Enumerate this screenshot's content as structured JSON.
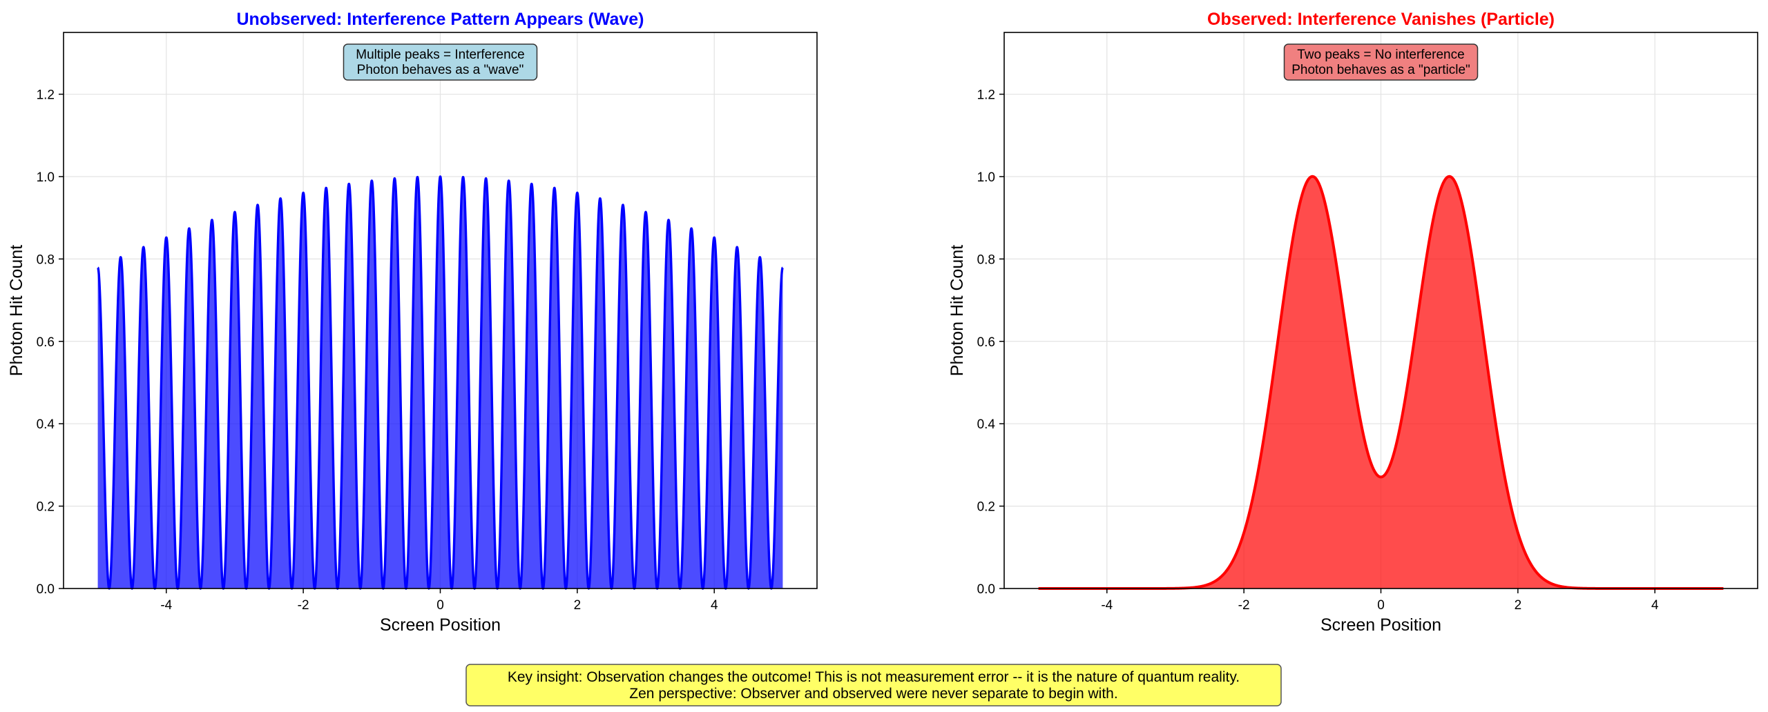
{
  "chart_data": [
    {
      "type": "area",
      "title": "Unobserved: Interference Pattern Appears (Wave)",
      "title_color": "#0000ff",
      "xlabel": "Screen Position",
      "ylabel": "Photon Hit Count",
      "xlim": [
        -5.5,
        5.5
      ],
      "ylim": [
        0,
        1.35
      ],
      "xticks": [
        -4,
        -2,
        0,
        2,
        4
      ],
      "xtick_labels": [
        "-4",
        "-2",
        "0",
        "2",
        "4"
      ],
      "yticks": [
        0,
        0.2,
        0.4,
        0.6,
        0.8,
        1.0,
        1.2
      ],
      "ytick_labels": [
        "0.0",
        "0.2",
        "0.4",
        "0.6",
        "0.8",
        "1.0",
        "1.2"
      ],
      "grid": true,
      "line_color": "#0000ff",
      "fill_color": "#0000ff",
      "fill_opacity": 0.7,
      "series": [
        {
          "x_range": [
            -5,
            5
          ],
          "function": "cos^2(3*pi*x) * exp(-(x/10)^2), confined to -5..5",
          "peak_count": 31,
          "peak_value": 1.0,
          "min_value": 0.0
        }
      ],
      "annotation": {
        "lines": [
          "Multiple peaks = Interference",
          "Photon behaves as a \"wave\""
        ],
        "background": "#add8e6",
        "position": "top-center"
      }
    },
    {
      "type": "area",
      "title": "Observed: Interference Vanishes (Particle)",
      "title_color": "#ff0000",
      "xlabel": "Screen Position",
      "ylabel": "Photon Hit Count",
      "xlim": [
        -5.5,
        5.5
      ],
      "ylim": [
        0,
        1.35
      ],
      "xticks": [
        -4,
        -2,
        0,
        2,
        4
      ],
      "xtick_labels": [
        "-4",
        "-2",
        "0",
        "2",
        "4"
      ],
      "yticks": [
        0,
        0.2,
        0.4,
        0.6,
        0.8,
        1.0,
        1.2
      ],
      "ytick_labels": [
        "0.0",
        "0.2",
        "0.4",
        "0.6",
        "0.8",
        "1.0",
        "1.2"
      ],
      "grid": true,
      "line_color": "#ff0000",
      "fill_color": "#ff0000",
      "fill_opacity": 0.7,
      "series": [
        {
          "x_range": [
            -5,
            5
          ],
          "function": "exp(-(x-1)^2/0.5) + exp(-(x+1)^2/0.5)",
          "peaks": [
            [
              -1,
              1.0
            ],
            [
              1,
              1.0
            ]
          ],
          "center_value": 0.27
        }
      ],
      "annotation": {
        "lines": [
          "Two peaks = No interference",
          "Photon behaves as a \"particle\""
        ],
        "background": "#f08080",
        "position": "top-center"
      }
    }
  ],
  "footer": {
    "lines": [
      "Key insight: Observation changes the outcome! This is not measurement error -- it is the nature of quantum reality.",
      "Zen perspective: Observer and observed were never separate to begin with."
    ],
    "background": "#ffff66"
  }
}
